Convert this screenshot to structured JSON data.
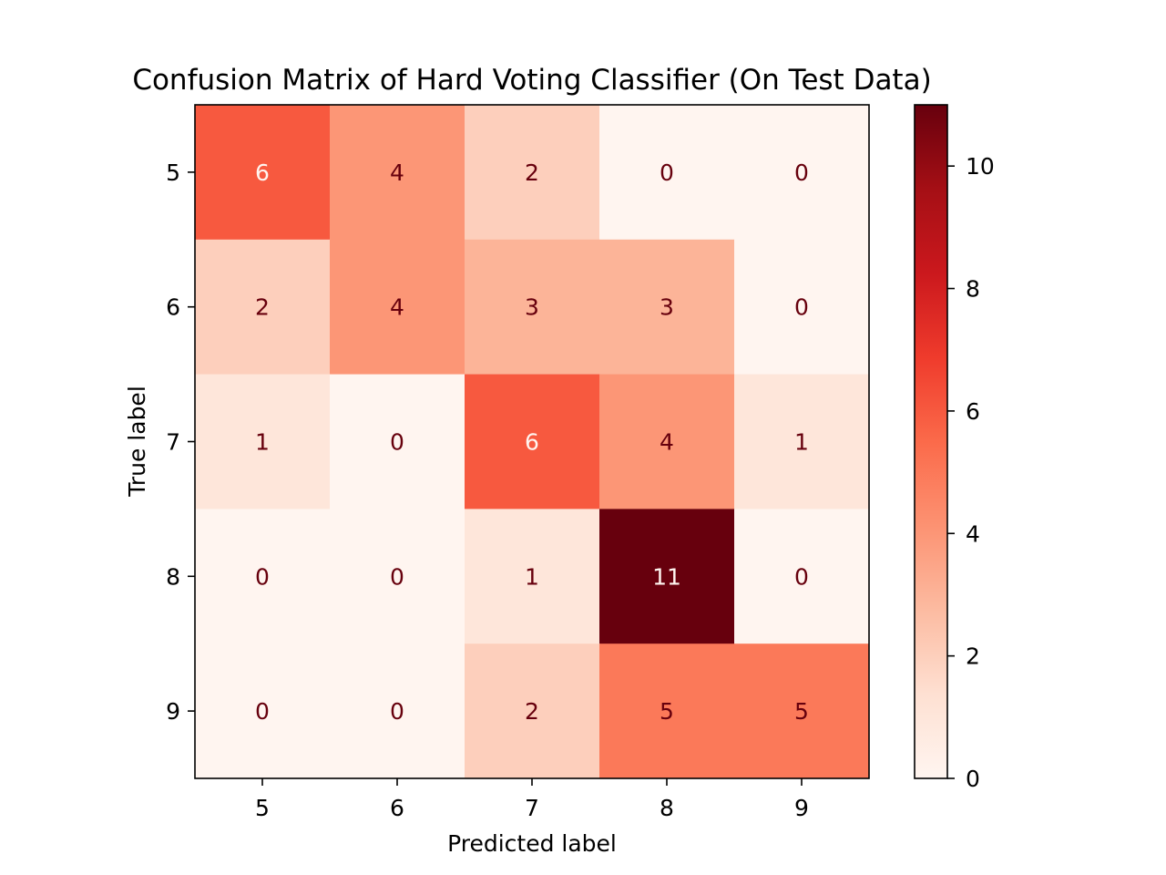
{
  "chart_data": {
    "type": "heatmap",
    "title": "Confusion Matrix of Hard Voting Classifier (On Test Data)",
    "xlabel": "Predicted label",
    "ylabel": "True label",
    "x_categories": [
      "5",
      "6",
      "7",
      "8",
      "9"
    ],
    "y_categories": [
      "5",
      "6",
      "7",
      "8",
      "9"
    ],
    "matrix": [
      [
        6,
        4,
        2,
        0,
        0
      ],
      [
        2,
        4,
        3,
        3,
        0
      ],
      [
        1,
        0,
        6,
        4,
        1
      ],
      [
        0,
        0,
        1,
        11,
        0
      ],
      [
        0,
        0,
        2,
        5,
        5
      ]
    ],
    "colormap": "Reds",
    "colorbar": {
      "range": [
        0,
        11
      ],
      "ticks": [
        0,
        2,
        4,
        6,
        8,
        10
      ],
      "tick_labels": [
        "0",
        "2",
        "4",
        "6",
        "8",
        "10"
      ]
    },
    "grid": false
  },
  "colors": {
    "text_on_light": "#67000d",
    "text_on_dark": "#fff5f0",
    "frame": "#000000"
  }
}
